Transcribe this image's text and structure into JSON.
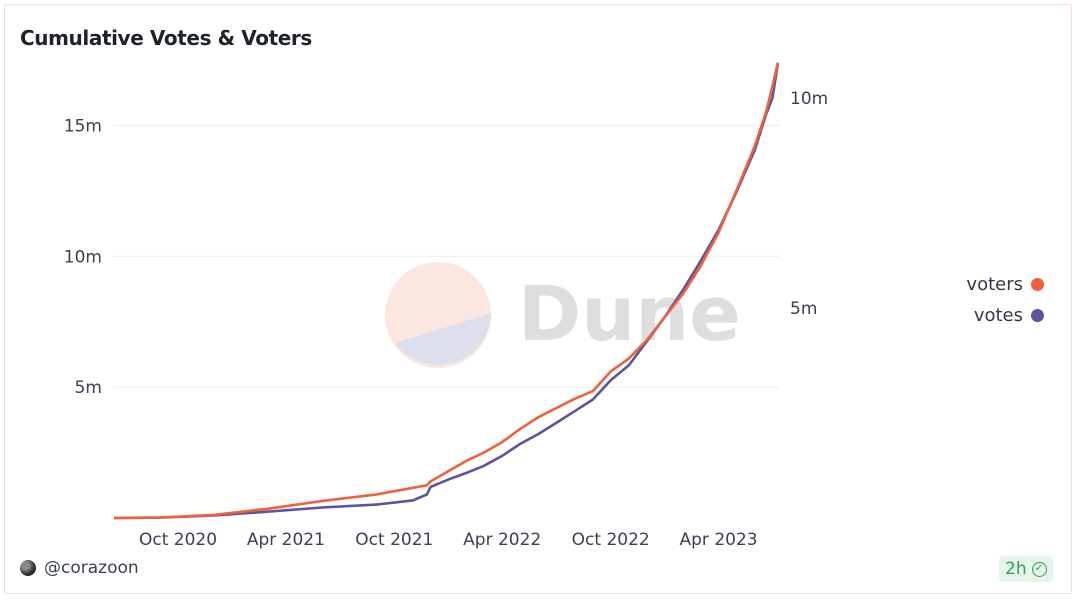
{
  "chart_data": {
    "type": "line",
    "title": "Cumulative Votes & Voters",
    "x_ticks": [
      "Oct 2020",
      "Apr 2021",
      "Oct 2021",
      "Apr 2022",
      "Oct 2022",
      "Apr 2023"
    ],
    "y_left_ticks": [
      "5m",
      "10m",
      "15m"
    ],
    "y_left_range": [
      0,
      17500000
    ],
    "y_right_ticks": [
      "5m",
      "10m"
    ],
    "y_right_range": [
      0,
      10900000
    ],
    "legend_position": "right",
    "grid": true,
    "series": [
      {
        "name": "voters",
        "axis": "left",
        "color": "#f0613a",
        "x": [
          "2020-06-15",
          "2020-09-01",
          "2020-12-01",
          "2021-03-01",
          "2021-06-01",
          "2021-09-01",
          "2021-11-01",
          "2021-11-25",
          "2021-12-01",
          "2022-01-01",
          "2022-02-01",
          "2022-03-01",
          "2022-04-01",
          "2022-05-01",
          "2022-06-01",
          "2022-07-01",
          "2022-08-01",
          "2022-09-01",
          "2022-10-01",
          "2022-11-01",
          "2022-12-01",
          "2023-01-01",
          "2023-02-01",
          "2023-03-01",
          "2023-04-01",
          "2023-05-01",
          "2023-06-01",
          "2023-06-20",
          "2023-07-01",
          "2023-07-10"
        ],
        "values": [
          0,
          20000,
          120000,
          350000,
          650000,
          900000,
          1150000,
          1250000,
          1400000,
          1800000,
          2200000,
          2500000,
          2900000,
          3400000,
          3850000,
          4200000,
          4550000,
          4850000,
          5600000,
          6100000,
          6800000,
          7700000,
          8600000,
          9600000,
          10900000,
          12500000,
          14200000,
          15500000,
          16500000,
          17400000
        ]
      },
      {
        "name": "votes",
        "axis": "right",
        "color": "#5b54a0",
        "x": [
          "2020-06-15",
          "2020-09-01",
          "2020-12-01",
          "2021-03-01",
          "2021-06-01",
          "2021-09-01",
          "2021-11-01",
          "2021-11-25",
          "2021-12-01",
          "2022-01-01",
          "2022-02-01",
          "2022-03-01",
          "2022-04-01",
          "2022-05-01",
          "2022-06-01",
          "2022-07-01",
          "2022-08-01",
          "2022-09-01",
          "2022-10-01",
          "2022-11-01",
          "2022-12-01",
          "2023-01-01",
          "2023-02-01",
          "2023-03-01",
          "2023-04-01",
          "2023-05-01",
          "2023-06-01",
          "2023-06-20",
          "2023-07-01",
          "2023-07-10"
        ],
        "values": [
          0,
          10000,
          60000,
          150000,
          250000,
          320000,
          420000,
          560000,
          740000,
          920000,
          1080000,
          1240000,
          1480000,
          1760000,
          2000000,
          2260000,
          2540000,
          2820000,
          3280000,
          3640000,
          4200000,
          4800000,
          5450000,
          6100000,
          6850000,
          7750000,
          8750000,
          9600000,
          10000000,
          10800000
        ]
      }
    ]
  },
  "watermark": "Dune",
  "footer": {
    "author": "@corazoon",
    "refresh": "2h"
  },
  "colors": {
    "voters": "#f0613a",
    "votes": "#5b54a0",
    "grid": "#ececec"
  },
  "icons": {
    "refresh_status": "check-circle-icon",
    "avatar": "avatar"
  }
}
